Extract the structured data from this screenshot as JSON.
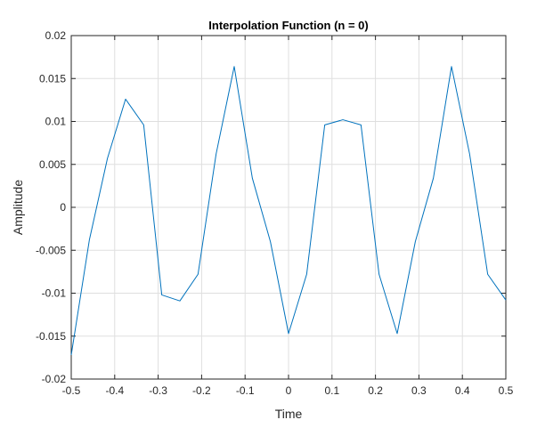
{
  "chart_data": {
    "type": "line",
    "title": "Interpolation Function (n = 0)",
    "xlabel": "Time",
    "ylabel": "Amplitude",
    "xlim": [
      -0.5,
      0.5
    ],
    "ylim": [
      -0.02,
      0.02
    ],
    "grid": true,
    "x_ticks": [
      "-0.5",
      "-0.4",
      "-0.3",
      "-0.2",
      "-0.1",
      "0",
      "0.1",
      "0.2",
      "0.3",
      "0.4",
      "0.5"
    ],
    "y_ticks": [
      "-0.02",
      "-0.015",
      "-0.01",
      "-0.005",
      "0",
      "0.005",
      "0.01",
      "0.015",
      "0.02"
    ],
    "line_color": "#0072BD",
    "series": [
      {
        "x": [
          -0.5,
          -0.4583,
          -0.4167,
          -0.375,
          -0.3333,
          -0.2917,
          -0.25,
          -0.2083,
          -0.1667,
          -0.125,
          -0.0833,
          -0.0417,
          0,
          0.0417,
          0.0833,
          0.125,
          0.1667,
          0.2083,
          0.25,
          0.2917,
          0.3333,
          0.375,
          0.4167,
          0.4583,
          0.5
        ],
        "values": [
          -0.0172,
          -0.0038,
          0.0057,
          0.0126,
          0.0096,
          -0.0102,
          -0.0109,
          -0.0078,
          0.0062,
          0.0164,
          0.0034,
          -0.004,
          -0.0147,
          -0.0078,
          0.0096,
          0.0102,
          0.0096,
          -0.0078,
          -0.0147,
          -0.004,
          0.0034,
          0.0164,
          0.0062,
          -0.0078,
          -0.0108
        ]
      }
    ]
  }
}
